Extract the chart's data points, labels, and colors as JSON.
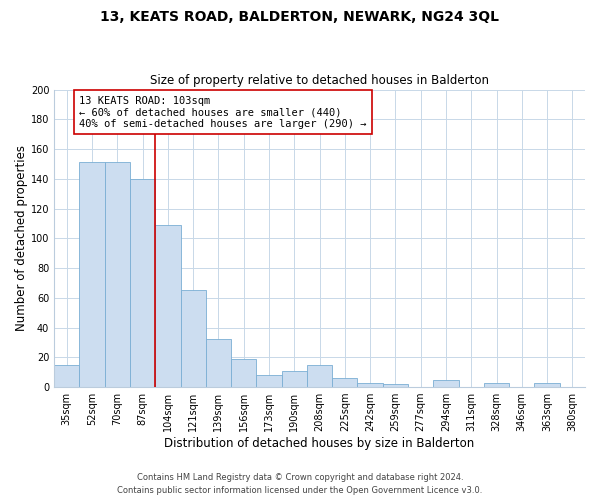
{
  "title": "13, KEATS ROAD, BALDERTON, NEWARK, NG24 3QL",
  "subtitle": "Size of property relative to detached houses in Balderton",
  "xlabel": "Distribution of detached houses by size in Balderton",
  "ylabel": "Number of detached properties",
  "bar_labels": [
    "35sqm",
    "52sqm",
    "70sqm",
    "87sqm",
    "104sqm",
    "121sqm",
    "139sqm",
    "156sqm",
    "173sqm",
    "190sqm",
    "208sqm",
    "225sqm",
    "242sqm",
    "259sqm",
    "277sqm",
    "294sqm",
    "311sqm",
    "328sqm",
    "346sqm",
    "363sqm",
    "380sqm"
  ],
  "bar_values": [
    15,
    151,
    151,
    140,
    109,
    65,
    32,
    19,
    8,
    11,
    15,
    6,
    3,
    2,
    0,
    5,
    0,
    3,
    0,
    3,
    0
  ],
  "bar_color": "#ccddf0",
  "bar_edge_color": "#7aaed4",
  "vline_color": "#cc0000",
  "annotation_title": "13 KEATS ROAD: 103sqm",
  "annotation_line1": "← 60% of detached houses are smaller (440)",
  "annotation_line2": "40% of semi-detached houses are larger (290) →",
  "annotation_box_edge": "#cc0000",
  "ylim": [
    0,
    200
  ],
  "yticks": [
    0,
    20,
    40,
    60,
    80,
    100,
    120,
    140,
    160,
    180,
    200
  ],
  "footer_line1": "Contains HM Land Registry data © Crown copyright and database right 2024.",
  "footer_line2": "Contains public sector information licensed under the Open Government Licence v3.0.",
  "background_color": "#ffffff",
  "grid_color": "#c8d8e8"
}
